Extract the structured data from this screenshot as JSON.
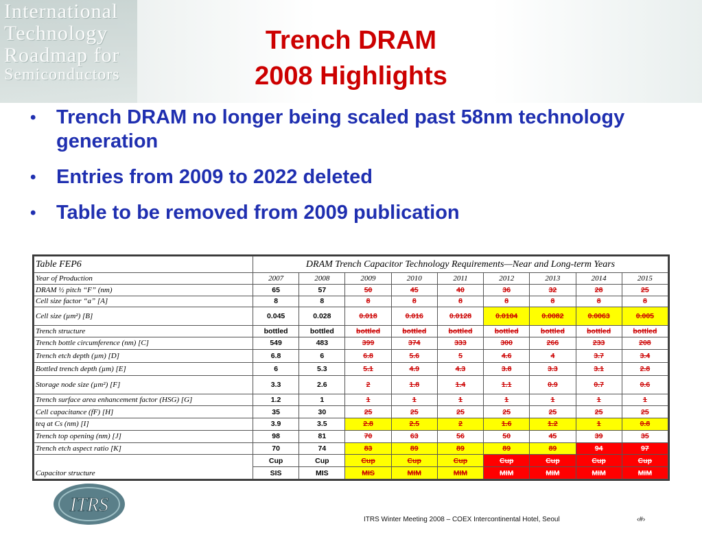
{
  "watermark": {
    "words": [
      "International",
      "Technology",
      "Roadmap for",
      "Semiconductors"
    ]
  },
  "title": {
    "line1": "Trench DRAM",
    "line2": "2008 Highlights"
  },
  "bullets": [
    "Trench DRAM no longer being scaled past 58nm technology generation",
    "Entries from 2009 to 2022 deleted",
    "Table to be removed from 2009 publication"
  ],
  "table": {
    "id": "Table FEP6",
    "title": "DRAM Trench Capacitor Technology Requirements—Near and Long-term Years",
    "year_label": "Year of Production",
    "years": [
      "2007",
      "2008",
      "2009",
      "2010",
      "2011",
      "2012",
      "2013",
      "2014",
      "2015"
    ],
    "rows": [
      {
        "label": "DRAM ½ pitch “F” (nm)",
        "values": [
          "65",
          "57",
          "50",
          "45",
          "40",
          "36",
          "32",
          "28",
          "25"
        ],
        "styles": [
          "v",
          "v",
          "x",
          "x",
          "x",
          "x",
          "x",
          "x",
          "x"
        ]
      },
      {
        "label": "Cell size factor “a” [A]",
        "values": [
          "8",
          "8",
          "8",
          "8",
          "8",
          "8",
          "8",
          "8",
          "8"
        ],
        "styles": [
          "v",
          "v",
          "x",
          "x",
          "x",
          "x",
          "x",
          "x",
          "x"
        ]
      },
      {
        "label": "Cell size (µm²) [B]",
        "values": [
          "0.045",
          "0.028",
          "0.018",
          "0.016",
          "0.0128",
          "0.0104",
          "0.0082",
          "0.0063",
          "0.005"
        ],
        "styles": [
          "v",
          "v",
          "x",
          "x",
          "x",
          "xy",
          "xy",
          "xy",
          "xy"
        ]
      },
      {
        "label": "Trench structure",
        "values": [
          "bottled",
          "bottled",
          "bottled",
          "bottled",
          "bottled",
          "bottled",
          "bottled",
          "bottled",
          "bottled"
        ],
        "styles": [
          "v",
          "v",
          "x",
          "x",
          "x",
          "x",
          "x",
          "x",
          "x"
        ]
      },
      {
        "label": "Trench bottle circumference (nm) [C]",
        "values": [
          "549",
          "483",
          "399",
          "374",
          "333",
          "300",
          "266",
          "233",
          "208"
        ],
        "styles": [
          "v",
          "v",
          "x",
          "x",
          "x",
          "x",
          "x",
          "x",
          "x"
        ]
      },
      {
        "label": "Trench etch depth (µm) [D]",
        "values": [
          "6.8",
          "6",
          "6.8",
          "5.6",
          "5",
          "4.6",
          "4",
          "3.7",
          "3.4"
        ],
        "styles": [
          "v",
          "v",
          "x",
          "x",
          "x",
          "x",
          "x",
          "x",
          "x"
        ]
      },
      {
        "label": "Bottled trench depth (µm) [E]",
        "values": [
          "6",
          "5.3",
          "5.1",
          "4.9",
          "4.3",
          "3.8",
          "3.3",
          "3.1",
          "2.8"
        ],
        "styles": [
          "v",
          "v",
          "x",
          "x",
          "x",
          "x",
          "x",
          "x",
          "x"
        ]
      },
      {
        "label": "Storage node size (µm²) [F]",
        "values": [
          "3.3",
          "2.6",
          "2",
          "1.8",
          "1.4",
          "1.1",
          "0.9",
          "0.7",
          "0.6"
        ],
        "styles": [
          "v",
          "v",
          "x",
          "x",
          "x",
          "x",
          "x",
          "x",
          "x"
        ]
      },
      {
        "label": "Trench surface area enhancement factor (HSG) [G]",
        "values": [
          "1.2",
          "1",
          "1",
          "1",
          "1",
          "1",
          "1",
          "1",
          "1"
        ],
        "styles": [
          "v",
          "v",
          "x",
          "x",
          "x",
          "x",
          "x",
          "x",
          "x"
        ]
      },
      {
        "label": "Cell capacitance (fF) [H]",
        "values": [
          "35",
          "30",
          "25",
          "25",
          "25",
          "25",
          "25",
          "25",
          "25"
        ],
        "styles": [
          "v",
          "v",
          "x",
          "x",
          "x",
          "x",
          "x",
          "x",
          "x"
        ]
      },
      {
        "label": "teq at Cs (nm) [I]",
        "values": [
          "3.9",
          "3.5",
          "2.8",
          "2.5",
          "2",
          "1.6",
          "1.2",
          "1",
          "0.8"
        ],
        "styles": [
          "v",
          "v",
          "xy",
          "xy",
          "xy",
          "xy",
          "xy",
          "xy",
          "xy"
        ]
      },
      {
        "label": "Trench top opening (nm) [J]",
        "values": [
          "98",
          "81",
          "70",
          "63",
          "56",
          "50",
          "45",
          "39",
          "35"
        ],
        "styles": [
          "v",
          "v",
          "x",
          "x",
          "x",
          "x",
          "x",
          "x",
          "x"
        ]
      },
      {
        "label": "Trench etch aspect ratio [K]",
        "values": [
          "70",
          "74",
          "83",
          "89",
          "89",
          "89",
          "89",
          "94",
          "97"
        ],
        "styles": [
          "v",
          "v",
          "xy",
          "xy",
          "xy",
          "xy",
          "xy",
          "r",
          "r"
        ]
      }
    ],
    "capacitor": {
      "label": "Capacitor structure",
      "top": [
        "Cup",
        "Cup",
        "Cup",
        "Cup",
        "Cup",
        "Cup",
        "Cup",
        "Cup",
        "Cup"
      ],
      "top_styles": [
        "v",
        "v",
        "xy",
        "xy",
        "xy",
        "r",
        "r",
        "r",
        "r"
      ],
      "bottom": [
        "SIS",
        "MIS",
        "MIS",
        "MIM",
        "MIM",
        "MIM",
        "MIM",
        "MIM",
        "MIM"
      ],
      "bottom_styles": [
        "v",
        "v",
        "xy",
        "xy",
        "xy",
        "r",
        "r",
        "r",
        "r"
      ]
    }
  },
  "logo": {
    "text": "ITRS"
  },
  "footer": {
    "text": "ITRS Winter Meeting  2008 – COEX Intercontinental Hotel, Seoul",
    "page": "‹#›"
  },
  "colors": {
    "title": "#cc0000",
    "bullet": "#1f2fb0",
    "highlight_yellow": "#ffff00",
    "highlight_red": "#ff0000"
  }
}
